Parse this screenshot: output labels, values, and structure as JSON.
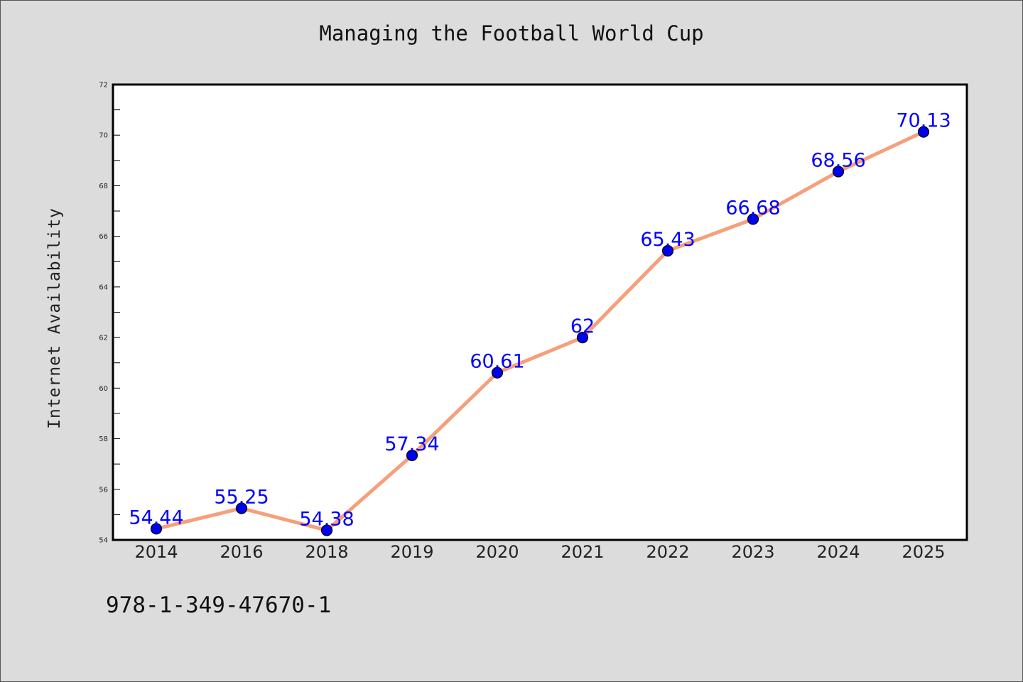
{
  "chart_data": {
    "type": "line",
    "title": "Managing the Football World Cup",
    "xlabel": "",
    "ylabel": "Internet Availability",
    "categories": [
      "2014",
      "2016",
      "2018",
      "2019",
      "2020",
      "2021",
      "2022",
      "2023",
      "2024",
      "2025"
    ],
    "values": [
      54.44,
      55.25,
      54.38,
      57.34,
      60.61,
      62,
      65.43,
      66.68,
      68.56,
      70.13
    ],
    "data_labels": [
      "54.44",
      "55.25",
      "54.38",
      "57.34",
      "60.61",
      "62",
      "65.43",
      "66.68",
      "68.56",
      "70.13"
    ],
    "ylim": [
      54,
      72
    ],
    "y_ticks": [
      "54",
      "56",
      "58",
      "60",
      "62",
      "64",
      "66",
      "68",
      "70",
      "72"
    ],
    "grid": false,
    "line_color": "#f5a07a",
    "marker_color": "#0000ee",
    "label_color": "#0000ff"
  },
  "footnote": "978-1-349-47670-1"
}
